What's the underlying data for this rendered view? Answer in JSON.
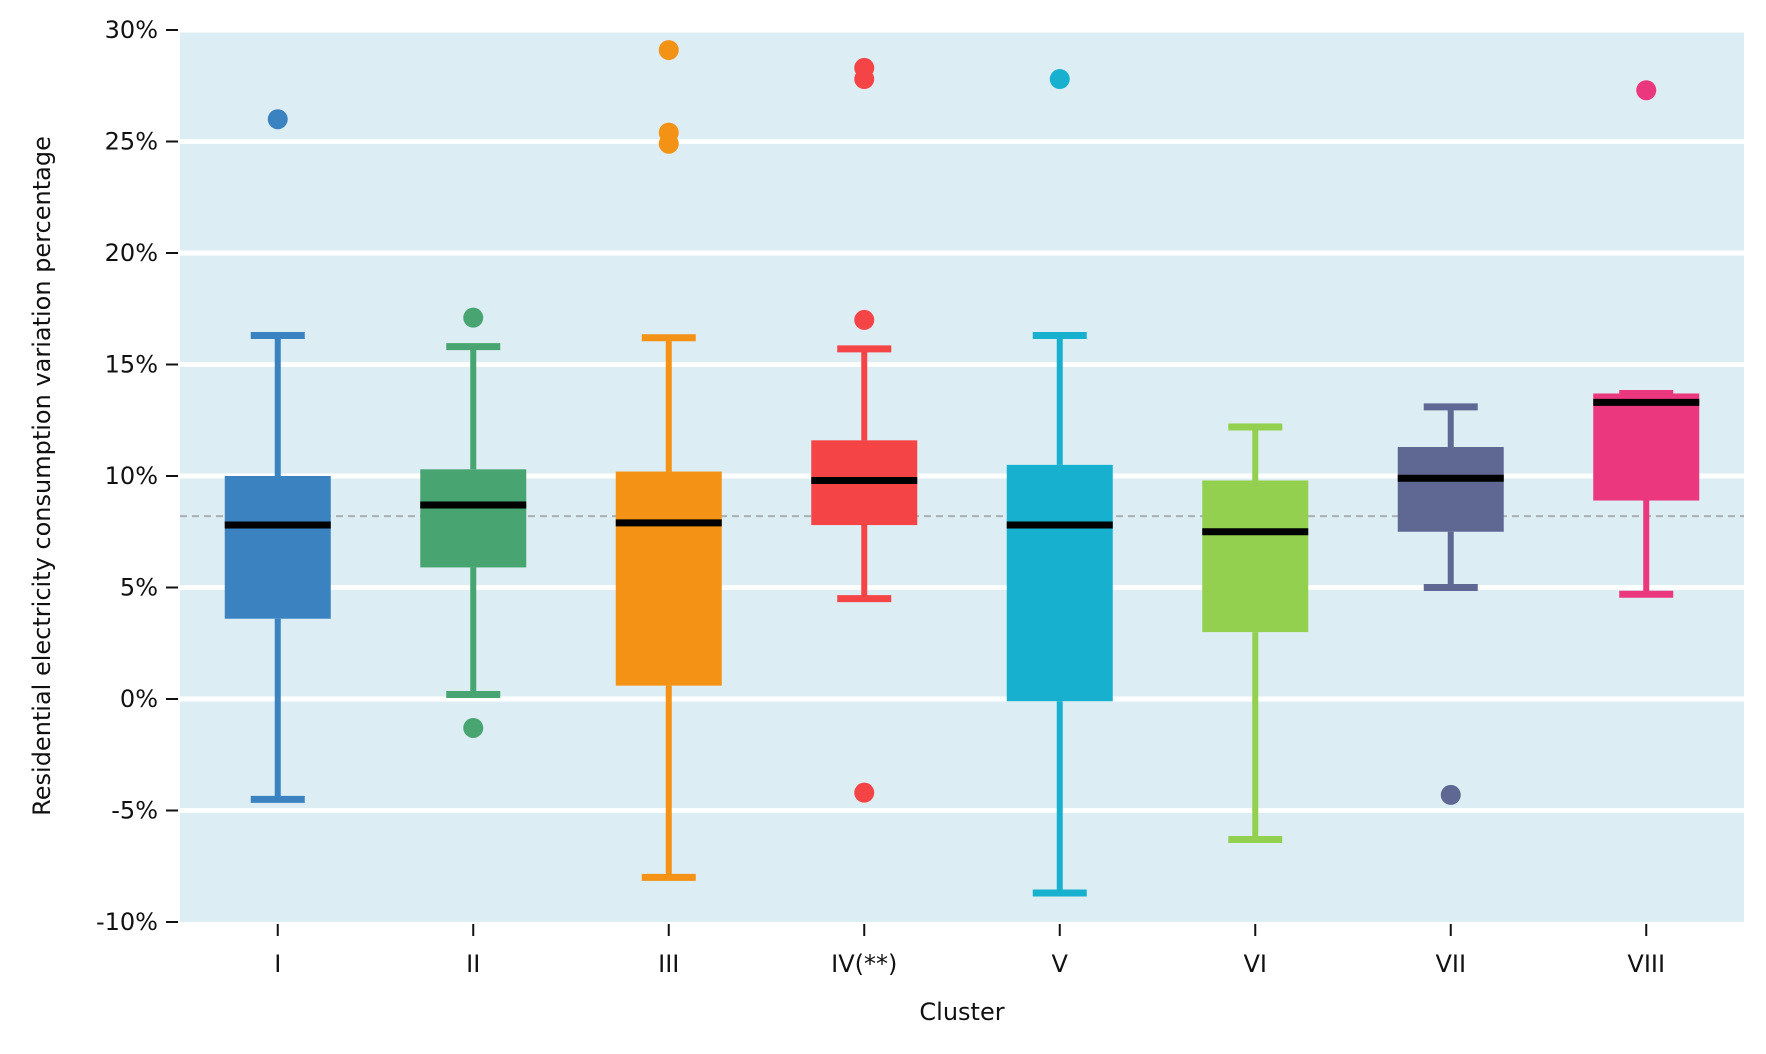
{
  "chart_data": {
    "type": "box",
    "title": "",
    "xlabel": "Cluster",
    "ylabel": "Residential electricity consumption variation percentage",
    "ylim": [
      -10,
      30
    ],
    "yticks": [
      {
        "value": -10,
        "label": "-10%"
      },
      {
        "value": -5,
        "label": "-5%"
      },
      {
        "value": 0,
        "label": "0%"
      },
      {
        "value": 5,
        "label": "5%"
      },
      {
        "value": 10,
        "label": "10%"
      },
      {
        "value": 15,
        "label": "15%"
      },
      {
        "value": 20,
        "label": "20%"
      },
      {
        "value": 25,
        "label": "25%"
      },
      {
        "value": 30,
        "label": "30%"
      }
    ],
    "reference_line": 8.2,
    "grid": true,
    "background_color": "#dcedf3",
    "categories": [
      "I",
      "II",
      "III",
      "IV(**)",
      "V",
      "VI",
      "VII",
      "VIII"
    ],
    "boxes": [
      {
        "category": "I",
        "color": "#3a82c0",
        "whisker_low": -4.5,
        "q1": 3.6,
        "median": 7.8,
        "q3": 10.0,
        "whisker_high": 16.3,
        "outliers": [
          26.0
        ]
      },
      {
        "category": "II",
        "color": "#48a572",
        "whisker_low": 0.2,
        "q1": 5.9,
        "median": 8.7,
        "q3": 10.3,
        "whisker_high": 15.8,
        "outliers": [
          17.1,
          -1.3
        ]
      },
      {
        "category": "III",
        "color": "#f39214",
        "whisker_low": -8.0,
        "q1": 0.6,
        "median": 7.9,
        "q3": 10.2,
        "whisker_high": 16.2,
        "outliers": [
          29.1,
          25.4,
          24.9
        ]
      },
      {
        "category": "IV(**)",
        "color": "#f54446",
        "whisker_low": 4.5,
        "q1": 7.8,
        "median": 9.8,
        "q3": 11.6,
        "whisker_high": 15.7,
        "outliers": [
          28.3,
          27.8,
          17.0,
          -4.2
        ]
      },
      {
        "category": "V",
        "color": "#17b1cf",
        "whisker_low": -8.7,
        "q1": -0.1,
        "median": 7.8,
        "q3": 10.5,
        "whisker_high": 16.3,
        "outliers": [
          27.8
        ]
      },
      {
        "category": "VI",
        "color": "#93d04f",
        "whisker_low": -6.3,
        "q1": 3.0,
        "median": 7.5,
        "q3": 9.8,
        "whisker_high": 12.2,
        "outliers": []
      },
      {
        "category": "VII",
        "color": "#5f6893",
        "whisker_low": 5.0,
        "q1": 7.5,
        "median": 9.9,
        "q3": 11.3,
        "whisker_high": 13.1,
        "outliers": [
          -4.3
        ]
      },
      {
        "category": "VIII",
        "color": "#ea377d",
        "whisker_low": 4.7,
        "q1": 8.9,
        "median": 13.3,
        "q3": 13.7,
        "whisker_high": 13.7,
        "outliers": [
          27.3
        ]
      }
    ]
  }
}
